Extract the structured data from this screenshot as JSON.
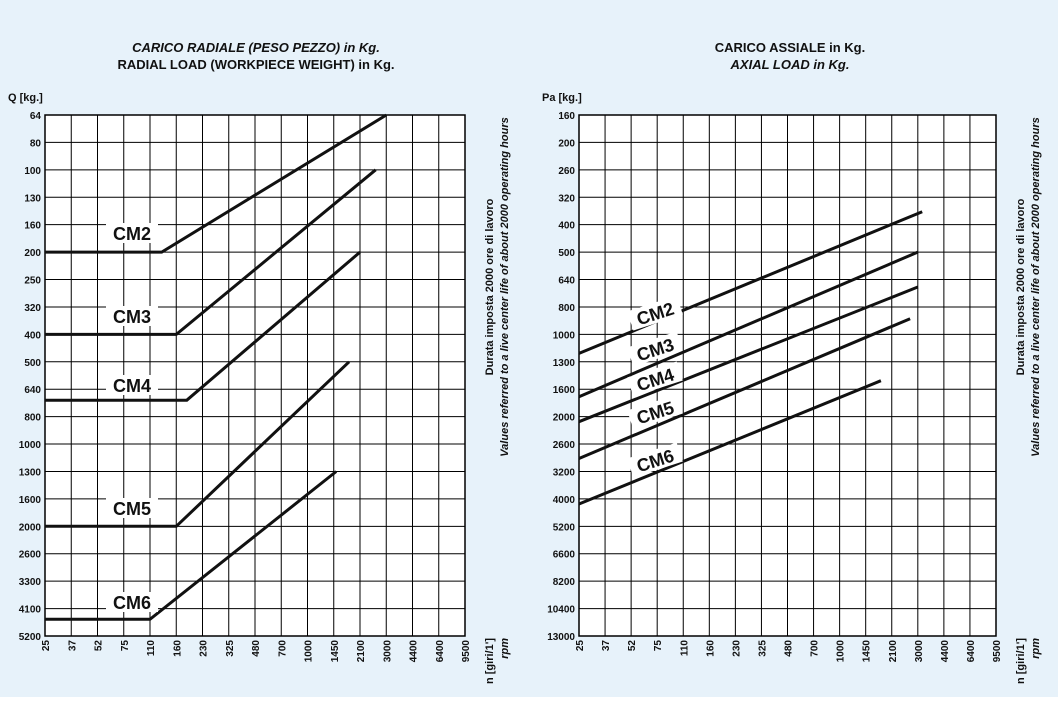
{
  "colors": {
    "background": "#e7f2fa",
    "grid": "#000000",
    "line": "#111111",
    "label_box": "#ffffff"
  },
  "chart_data": [
    {
      "type": "line",
      "title": "CARICO RADIALE (PESO PEZZO) in Kg.",
      "subtitle": "RADIAL LOAD (WORKPIECE WEIGHT) in Kg.",
      "ylabel": "Q [kg.]",
      "xlabel": "n [giri/1']",
      "xlabel_sub": "rpm",
      "side_note_1": "Durata imposta 2000 ore di lavoro",
      "side_note_2": "Values referred to a live center life of about 2000 operating hours",
      "x_ticks": [
        "25",
        "37",
        "52",
        "75",
        "110",
        "160",
        "230",
        "325",
        "480",
        "700",
        "1000",
        "1450",
        "2100",
        "3000",
        "4400",
        "6400",
        "9500"
      ],
      "y_ticks": [
        "64",
        "80",
        "100",
        "130",
        "160",
        "200",
        "250",
        "320",
        "400",
        "500",
        "640",
        "800",
        "1000",
        "1300",
        "1600",
        "2000",
        "2600",
        "3300",
        "4100",
        "5200"
      ],
      "y_inverted": true,
      "grid": true,
      "series": [
        {
          "name": "CM2",
          "points": [
            [
              25,
              200
            ],
            [
              130,
              200
            ],
            [
              3000,
              64
            ]
          ]
        },
        {
          "name": "CM3",
          "points": [
            [
              25,
              400
            ],
            [
              160,
              400
            ],
            [
              2600,
              100
            ]
          ]
        },
        {
          "name": "CM4",
          "points": [
            [
              25,
              700
            ],
            [
              185,
              700
            ],
            [
              2100,
              200
            ]
          ]
        },
        {
          "name": "CM5",
          "points": [
            [
              25,
              2000
            ],
            [
              160,
              2000
            ],
            [
              1800,
              500
            ]
          ]
        },
        {
          "name": "CM6",
          "points": [
            [
              25,
              4500
            ],
            [
              110,
              4500
            ],
            [
              1500,
              1300
            ]
          ]
        }
      ]
    },
    {
      "type": "line",
      "title": "CARICO ASSIALE in Kg.",
      "subtitle": "AXIAL LOAD in Kg.",
      "ylabel": "Pa [kg.]",
      "xlabel": "n [giri/1']",
      "xlabel_sub": "rpm",
      "side_note_1": "Durata imposta 2000 ore di lavoro",
      "side_note_2": "Values referred to a live center life of about 2000 operating hours",
      "x_ticks": [
        "25",
        "37",
        "52",
        "75",
        "110",
        "160",
        "230",
        "325",
        "480",
        "700",
        "1000",
        "1450",
        "2100",
        "3000",
        "4400",
        "6400",
        "9500"
      ],
      "y_ticks": [
        "160",
        "200",
        "260",
        "320",
        "400",
        "500",
        "640",
        "800",
        "1000",
        "1300",
        "1600",
        "2000",
        "2600",
        "3200",
        "4000",
        "5200",
        "6600",
        "8200",
        "10400",
        "13000"
      ],
      "y_inverted": true,
      "grid": true,
      "series": [
        {
          "name": "CM2",
          "points": [
            [
              25,
              1200
            ],
            [
              3200,
              360
            ]
          ]
        },
        {
          "name": "CM3",
          "points": [
            [
              25,
              1700
            ],
            [
              3000,
              500
            ]
          ]
        },
        {
          "name": "CM4",
          "points": [
            [
              25,
              2100
            ],
            [
              3000,
              680
            ]
          ]
        },
        {
          "name": "CM5",
          "points": [
            [
              25,
              2900
            ],
            [
              2700,
              880
            ]
          ]
        },
        {
          "name": "CM6",
          "points": [
            [
              25,
              4200
            ],
            [
              1800,
              1500
            ]
          ]
        }
      ]
    }
  ]
}
